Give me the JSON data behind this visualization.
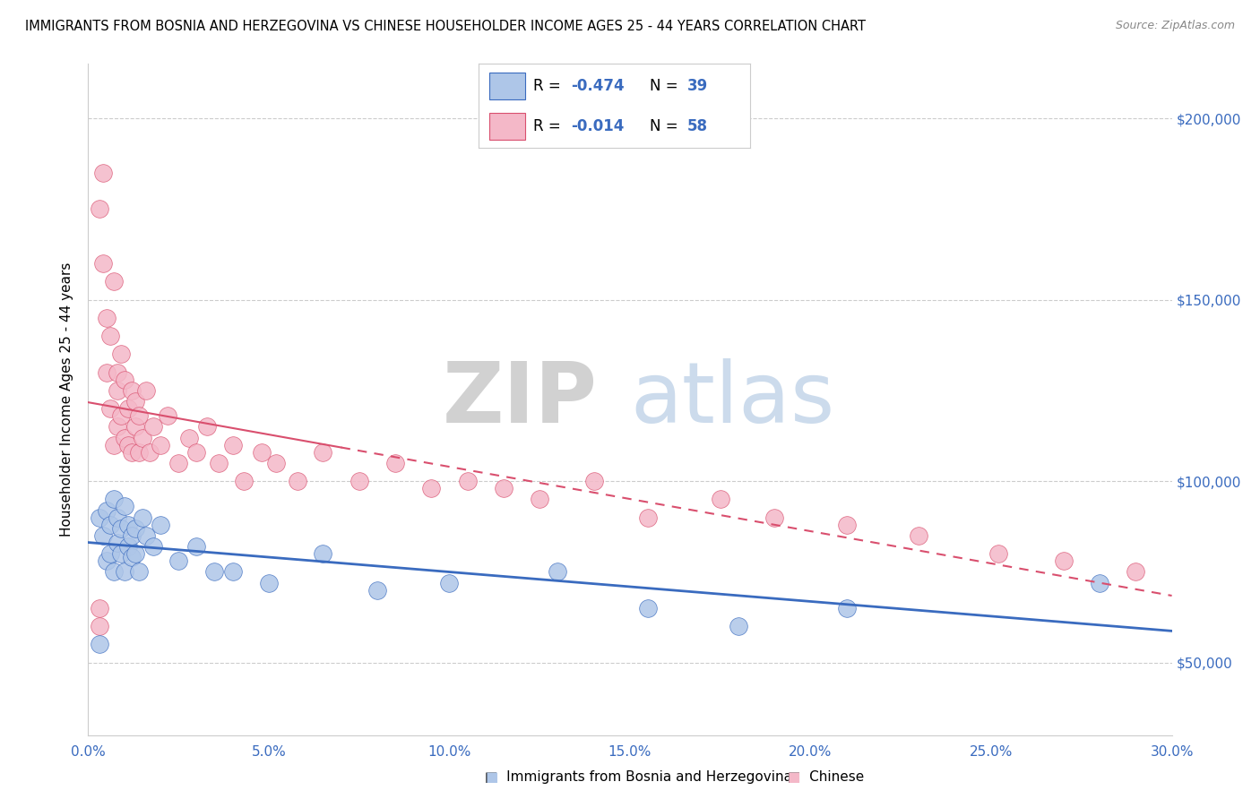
{
  "title": "IMMIGRANTS FROM BOSNIA AND HERZEGOVINA VS CHINESE HOUSEHOLDER INCOME AGES 25 - 44 YEARS CORRELATION CHART",
  "source": "Source: ZipAtlas.com",
  "ylabel": "Householder Income Ages 25 - 44 years",
  "xlim": [
    0.0,
    0.3
  ],
  "ylim": [
    30000,
    215000
  ],
  "xticks": [
    0.0,
    0.05,
    0.1,
    0.15,
    0.2,
    0.25,
    0.3
  ],
  "xticklabels": [
    "0.0%",
    "5.0%",
    "10.0%",
    "15.0%",
    "20.0%",
    "25.0%",
    "30.0%"
  ],
  "yticks": [
    50000,
    100000,
    150000,
    200000
  ],
  "yticklabels": [
    "$50,000",
    "$100,000",
    "$150,000",
    "$200,000"
  ],
  "bosnia_fill": "#aec6e8",
  "chinese_fill": "#f4b8c8",
  "bosnia_line_color": "#3a6bbf",
  "chinese_line_color": "#d94f6e",
  "bosnia_R": -0.474,
  "bosnia_N": 39,
  "chinese_R": -0.014,
  "chinese_N": 58,
  "watermark_zip": "ZIP",
  "watermark_atlas": "atlas",
  "bosnia_x": [
    0.003,
    0.004,
    0.005,
    0.005,
    0.006,
    0.006,
    0.007,
    0.007,
    0.008,
    0.008,
    0.009,
    0.009,
    0.01,
    0.01,
    0.011,
    0.011,
    0.012,
    0.012,
    0.013,
    0.013,
    0.014,
    0.015,
    0.016,
    0.018,
    0.02,
    0.025,
    0.03,
    0.035,
    0.04,
    0.05,
    0.065,
    0.08,
    0.1,
    0.13,
    0.155,
    0.18,
    0.21,
    0.28,
    0.003
  ],
  "bosnia_y": [
    90000,
    85000,
    92000,
    78000,
    88000,
    80000,
    95000,
    75000,
    83000,
    90000,
    80000,
    87000,
    75000,
    93000,
    82000,
    88000,
    85000,
    79000,
    87000,
    80000,
    75000,
    90000,
    85000,
    82000,
    88000,
    78000,
    82000,
    75000,
    75000,
    72000,
    80000,
    70000,
    72000,
    75000,
    65000,
    60000,
    65000,
    72000,
    55000
  ],
  "chinese_x": [
    0.003,
    0.004,
    0.004,
    0.005,
    0.005,
    0.006,
    0.006,
    0.007,
    0.007,
    0.008,
    0.008,
    0.008,
    0.009,
    0.009,
    0.01,
    0.01,
    0.011,
    0.011,
    0.012,
    0.012,
    0.013,
    0.013,
    0.014,
    0.014,
    0.015,
    0.016,
    0.017,
    0.018,
    0.02,
    0.022,
    0.025,
    0.028,
    0.03,
    0.033,
    0.036,
    0.04,
    0.043,
    0.048,
    0.052,
    0.058,
    0.065,
    0.075,
    0.085,
    0.095,
    0.105,
    0.115,
    0.125,
    0.14,
    0.155,
    0.175,
    0.19,
    0.21,
    0.23,
    0.252,
    0.27,
    0.29,
    0.003,
    0.003
  ],
  "chinese_y": [
    175000,
    160000,
    185000,
    145000,
    130000,
    140000,
    120000,
    155000,
    110000,
    130000,
    115000,
    125000,
    118000,
    135000,
    128000,
    112000,
    120000,
    110000,
    125000,
    108000,
    115000,
    122000,
    108000,
    118000,
    112000,
    125000,
    108000,
    115000,
    110000,
    118000,
    105000,
    112000,
    108000,
    115000,
    105000,
    110000,
    100000,
    108000,
    105000,
    100000,
    108000,
    100000,
    105000,
    98000,
    100000,
    98000,
    95000,
    100000,
    90000,
    95000,
    90000,
    88000,
    85000,
    80000,
    78000,
    75000,
    60000,
    65000
  ]
}
